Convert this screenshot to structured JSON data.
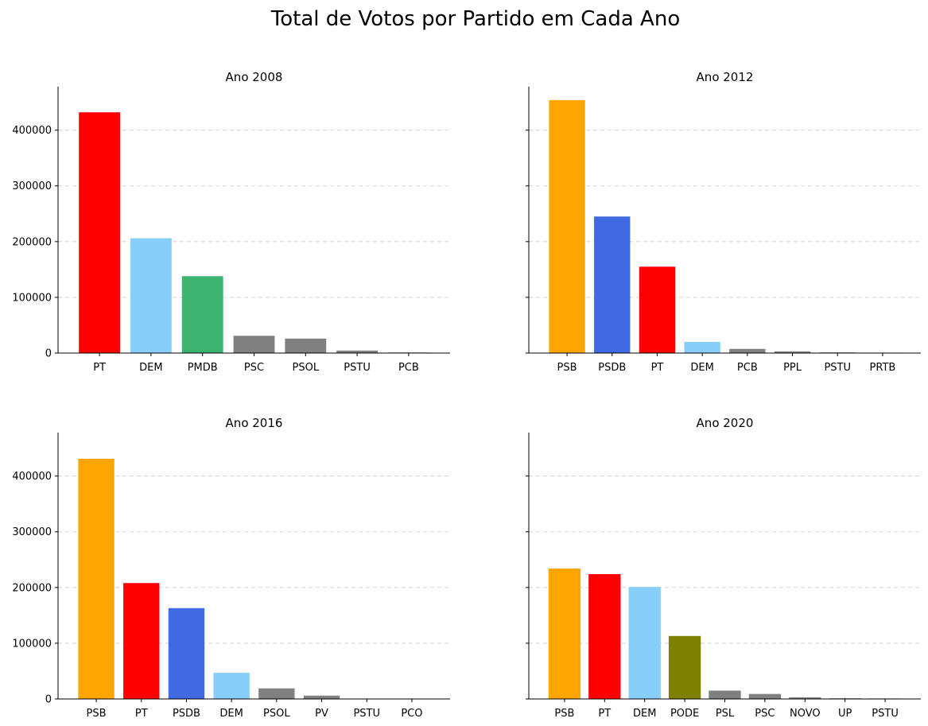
{
  "figure": {
    "suptitle": "Total de Votos por Partido em Cada Ano"
  },
  "chart_data": [
    {
      "type": "bar",
      "title": "Ano 2008",
      "xlabel": "",
      "ylabel": "",
      "categories": [
        "PT",
        "DEM",
        "PMDB",
        "PSC",
        "PSOL",
        "PSTU",
        "PCB"
      ],
      "values": [
        432000,
        206000,
        138000,
        31000,
        26000,
        4500,
        1000
      ],
      "colors": [
        "#ff0000",
        "#87cefa",
        "#3cb371",
        "#808080",
        "#808080",
        "#808080",
        "#808080"
      ],
      "ylim": [
        0,
        478000
      ],
      "yticks": [
        0,
        100000,
        200000,
        300000,
        400000
      ],
      "show_ytick_labels": true,
      "grid": "y-dashed"
    },
    {
      "type": "bar",
      "title": "Ano 2012",
      "xlabel": "",
      "ylabel": "",
      "categories": [
        "PSB",
        "PSDB",
        "PT",
        "DEM",
        "PCB",
        "PPL",
        "PSTU",
        "PRTB"
      ],
      "values": [
        454000,
        245000,
        155000,
        20000,
        7500,
        3000,
        1200,
        800
      ],
      "colors": [
        "#ffa500",
        "#4169e1",
        "#ff0000",
        "#87cefa",
        "#808080",
        "#808080",
        "#808080",
        "#808080"
      ],
      "ylim": [
        0,
        478000
      ],
      "yticks": [
        0,
        100000,
        200000,
        300000,
        400000
      ],
      "show_ytick_labels": false,
      "grid": "y-dashed"
    },
    {
      "type": "bar",
      "title": "Ano 2016",
      "xlabel": "",
      "ylabel": "",
      "categories": [
        "PSB",
        "PT",
        "PSDB",
        "DEM",
        "PSOL",
        "PV",
        "PSTU",
        "PCO"
      ],
      "values": [
        431000,
        208000,
        163000,
        47000,
        19000,
        6000,
        500,
        300
      ],
      "colors": [
        "#ffa500",
        "#ff0000",
        "#4169e1",
        "#87cefa",
        "#808080",
        "#808080",
        "#808080",
        "#808080"
      ],
      "ylim": [
        0,
        478000
      ],
      "yticks": [
        0,
        100000,
        200000,
        300000,
        400000
      ],
      "show_ytick_labels": true,
      "grid": "y-dashed"
    },
    {
      "type": "bar",
      "title": "Ano 2020",
      "xlabel": "",
      "ylabel": "",
      "categories": [
        "PSB",
        "PT",
        "DEM",
        "PODE",
        "PSL",
        "PSC",
        "NOVO",
        "UP",
        "PSTU"
      ],
      "values": [
        234000,
        224000,
        201000,
        113000,
        15000,
        9000,
        3000,
        1200,
        900
      ],
      "colors": [
        "#ffa500",
        "#ff0000",
        "#87cefa",
        "#808000",
        "#808080",
        "#808080",
        "#808080",
        "#808080",
        "#808080"
      ],
      "ylim": [
        0,
        478000
      ],
      "yticks": [
        0,
        100000,
        200000,
        300000,
        400000
      ],
      "show_ytick_labels": false,
      "grid": "y-dashed"
    }
  ]
}
